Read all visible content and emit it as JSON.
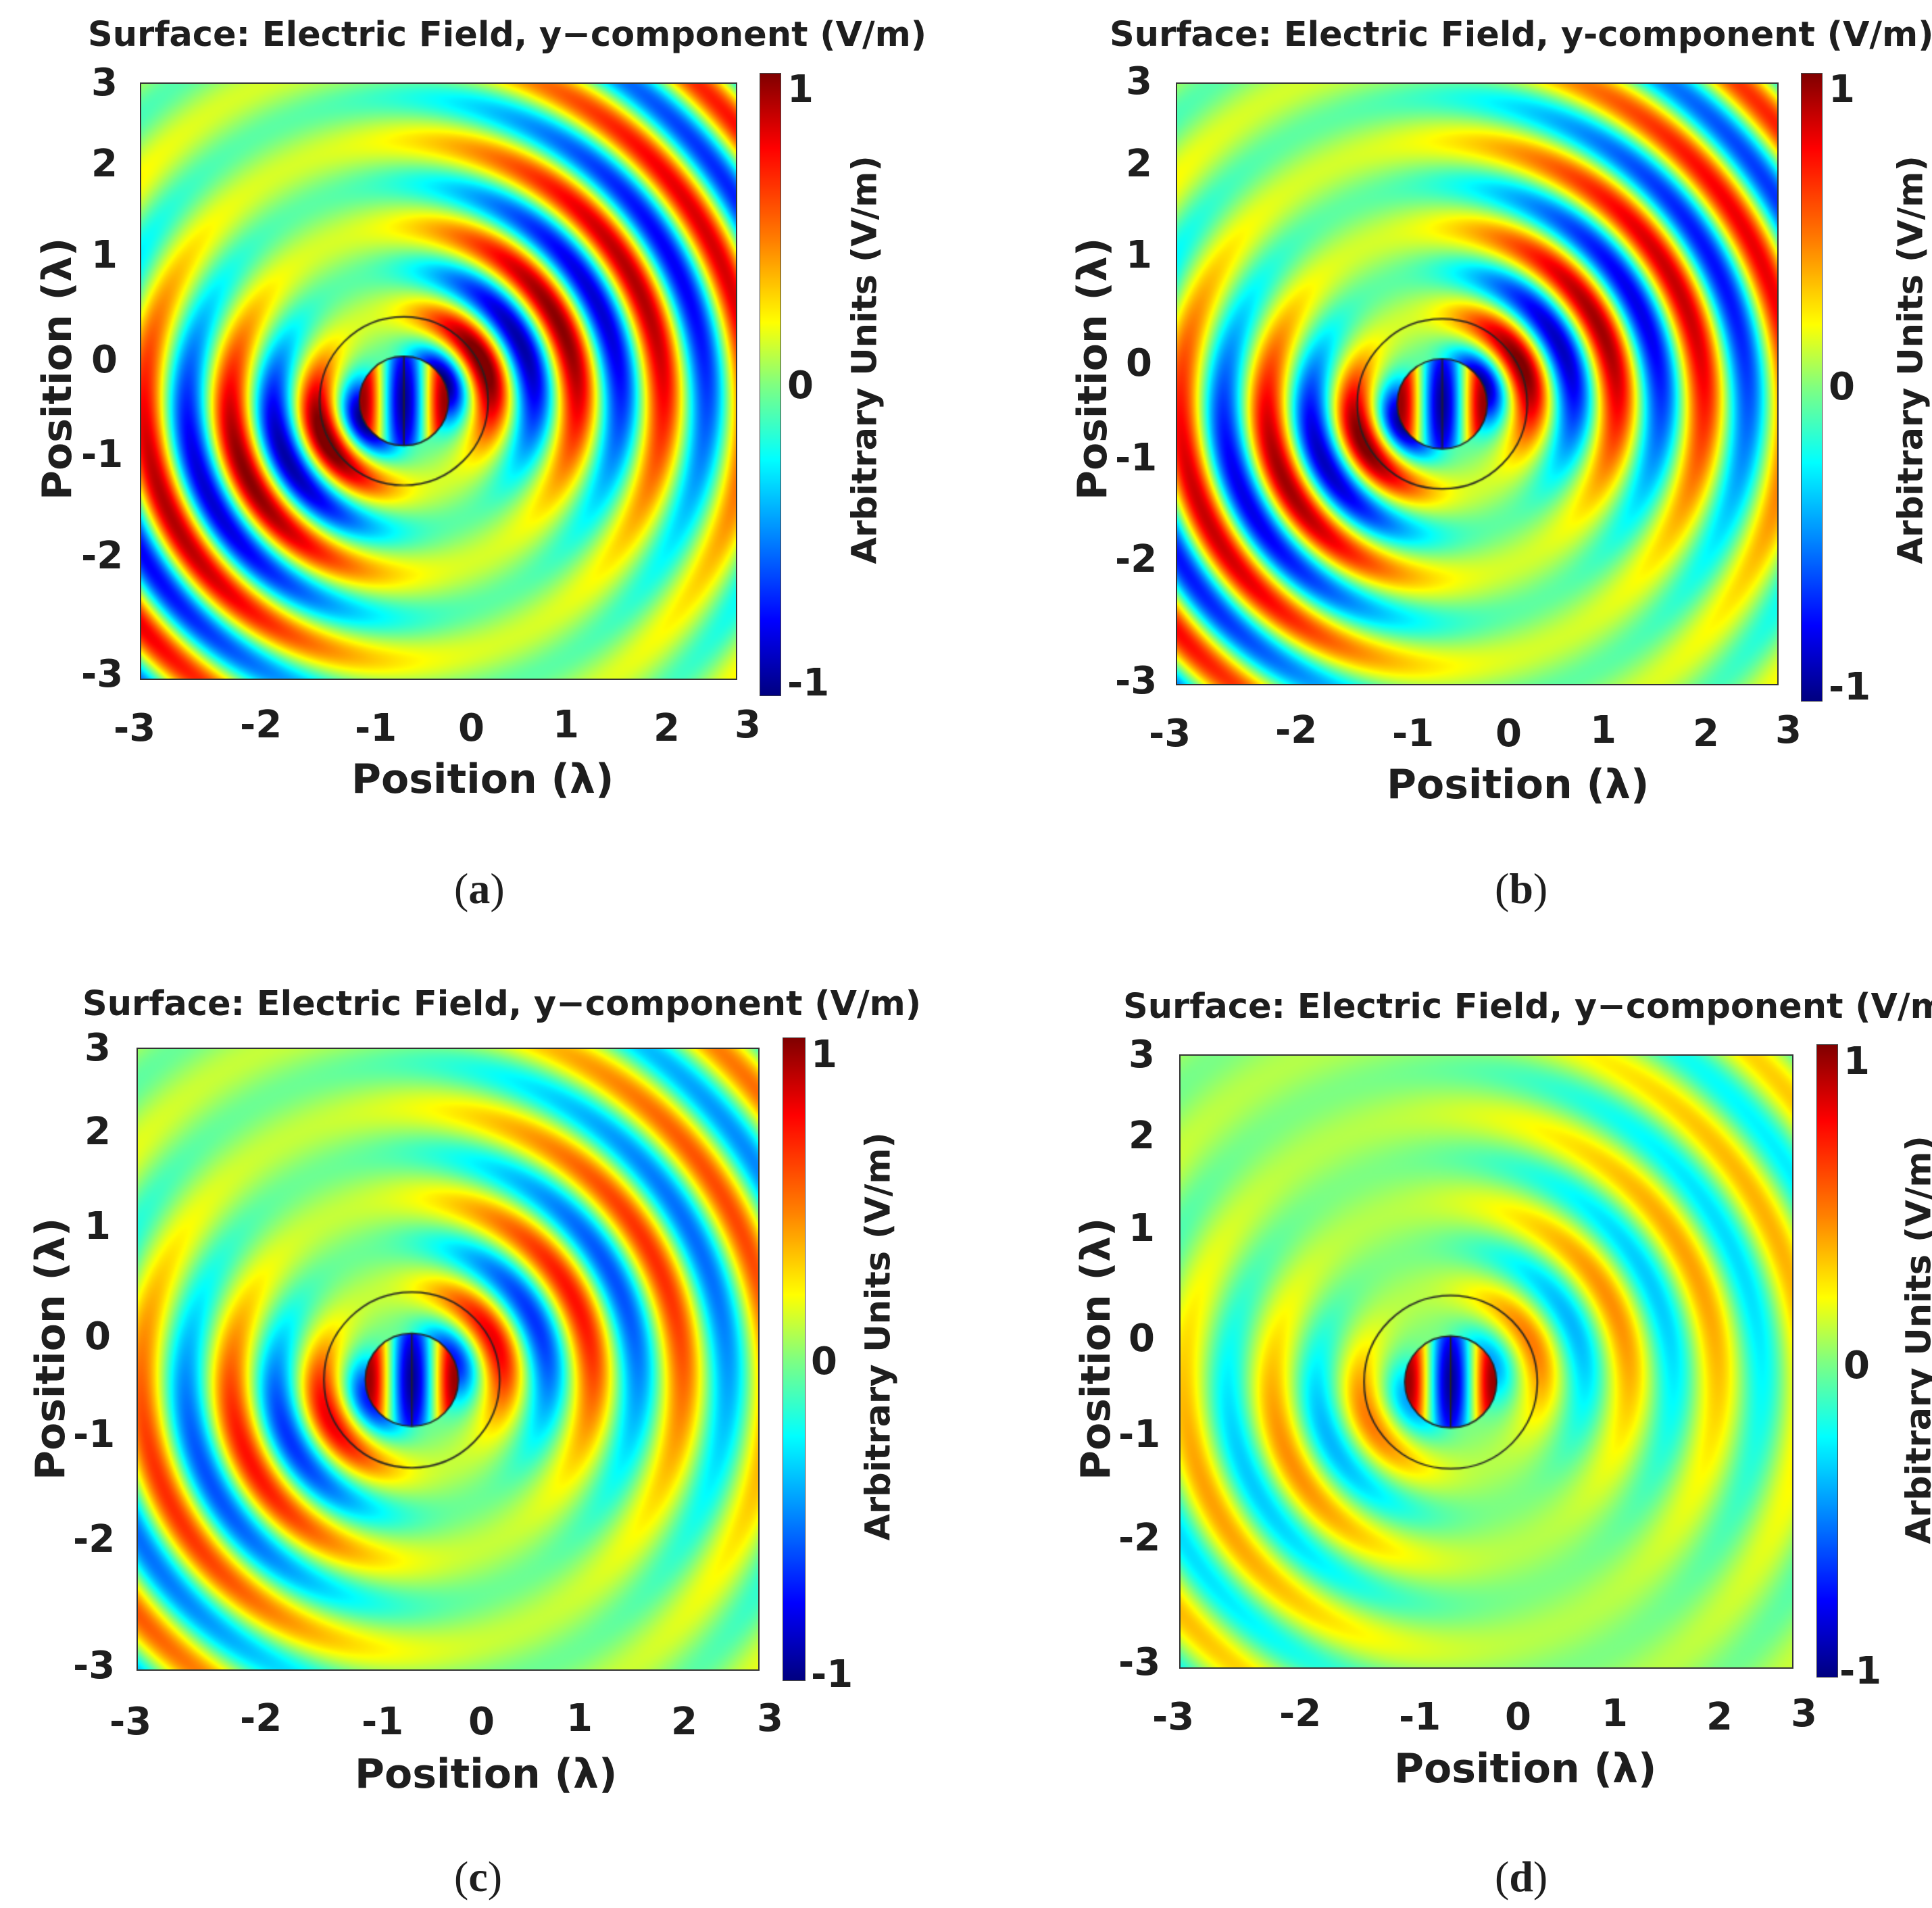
{
  "chart_data": [
    {
      "id": "a",
      "type": "heatmap",
      "title": "Surface: Electric Field, y−component (V/m)",
      "xlabel": "Position (λ)",
      "ylabel": "Position (λ)",
      "colorbar_label": "Arbitrary Units (V/m)",
      "xlim": [
        -3,
        3
      ],
      "ylim": [
        -3,
        3
      ],
      "clim": [
        -1,
        1
      ],
      "x_ticks": [
        "-3",
        "-2",
        "-1",
        "0",
        "1",
        "2",
        "3"
      ],
      "y_ticks": [
        "3",
        "2",
        "1",
        "0",
        "-1",
        "-2",
        "-3"
      ],
      "colorbar_ticks": [
        "1",
        "0",
        "-1"
      ],
      "source_center": [
        -0.35,
        -0.2
      ],
      "circles_radius": [
        0.45,
        0.85
      ],
      "wave_strength": 1.0,
      "caption_letter": "a"
    },
    {
      "id": "b",
      "type": "heatmap",
      "title": "Surface: Electric Field, y-component (V/m)",
      "xlabel": "Position (λ)",
      "ylabel": "Position (λ)",
      "colorbar_label": "Arbitrary Units (V/m)",
      "xlim": [
        -3,
        3
      ],
      "ylim": [
        -3,
        3
      ],
      "clim": [
        -1,
        1
      ],
      "x_ticks": [
        "-3",
        "-2",
        "-1",
        "0",
        "1",
        "2",
        "3"
      ],
      "y_ticks": [
        "3",
        "2",
        "1",
        "0",
        "-1",
        "-2",
        "-3"
      ],
      "colorbar_ticks": [
        "1",
        "0",
        "-1"
      ],
      "source_center": [
        -0.35,
        -0.2
      ],
      "circles_radius": [
        0.45,
        0.85
      ],
      "wave_strength": 0.95,
      "caption_letter": "b"
    },
    {
      "id": "c",
      "type": "heatmap",
      "title": "Surface: Electric Field, y−component (V/m)",
      "xlabel": "Position (λ)",
      "ylabel": "Position (λ)",
      "colorbar_label": "Arbitrary Units (V/m)",
      "xlim": [
        -3,
        3
      ],
      "ylim": [
        -3,
        3
      ],
      "clim": [
        -1,
        1
      ],
      "x_ticks": [
        "-3",
        "-2",
        "-1",
        "0",
        "1",
        "2",
        "3"
      ],
      "y_ticks": [
        "3",
        "2",
        "1",
        "0",
        "-1",
        "-2",
        "-3"
      ],
      "colorbar_ticks": [
        "1",
        "0",
        "-1"
      ],
      "source_center": [
        -0.35,
        -0.2
      ],
      "circles_radius": [
        0.45,
        0.85
      ],
      "wave_strength": 0.72,
      "caption_letter": "c"
    },
    {
      "id": "d",
      "type": "heatmap",
      "title": "Surface: Electric Field, y−component (V/m)",
      "xlabel": "Position (λ)",
      "ylabel": "Position (λ)",
      "colorbar_label": "Arbitrary Units (V/m)",
      "xlim": [
        -3,
        3
      ],
      "ylim": [
        -3,
        3
      ],
      "clim": [
        -1,
        1
      ],
      "x_ticks": [
        "-3",
        "-2",
        "-1",
        "0",
        "1",
        "2",
        "3"
      ],
      "y_ticks": [
        "3",
        "2",
        "1",
        "0",
        "-1",
        "-2",
        "-3"
      ],
      "colorbar_ticks": [
        "1",
        "0",
        "-1"
      ],
      "source_center": [
        -0.35,
        -0.2
      ],
      "circles_radius": [
        0.45,
        0.85
      ],
      "wave_strength": 0.45,
      "caption_letter": "d"
    }
  ]
}
